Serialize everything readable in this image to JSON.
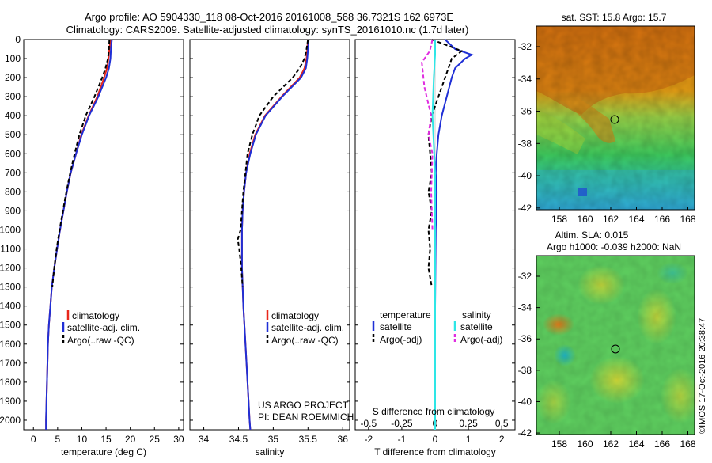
{
  "header": {
    "line1": "Argo profile: AO 5904330_118 08-Oct-2016 20161008_568 36.7321S 162.6973E",
    "line2": "Climatology: CARS2009. Satellite-adjusted climatology: synTS_20161010.nc (1.7d later)"
  },
  "depth_ticks": [
    "0",
    "100",
    "200",
    "300",
    "400",
    "500",
    "600",
    "700",
    "800",
    "900",
    "1000",
    "1100",
    "1200",
    "1300",
    "1400",
    "1500",
    "1600",
    "1700",
    "1800",
    "1900",
    "2000"
  ],
  "panel1": {
    "xlabel": "temperature (deg C)",
    "xticks": [
      "0",
      "5",
      "10",
      "15",
      "20",
      "25",
      "30"
    ],
    "legend": [
      "climatology",
      "satellite-adj. clim.",
      "Argo(..raw -QC)"
    ]
  },
  "panel2": {
    "xlabel": "salinity",
    "xticks": [
      "34",
      "34.5",
      "35",
      "35.5",
      "36"
    ],
    "legend": [
      "climatology",
      "satellite-adj. clim.",
      "Argo(..raw -QC)"
    ],
    "credit1": "US ARGO PROJECT",
    "credit2": "PI: DEAN ROEMMICH"
  },
  "panel3": {
    "xlabel": "T difference from climatology",
    "xticks": [
      "-2",
      "-1",
      "0",
      "1",
      "2"
    ],
    "top_label": "S difference from climatology",
    "top_ticks": [
      "-0.5",
      "-0.25",
      "0",
      "0.25",
      "0.5"
    ],
    "legend_t_head": "temperature",
    "legend_s_head": "salinity",
    "legend_t": [
      "satellite",
      "Argo(-adj)"
    ],
    "legend_s": [
      "satellite",
      "Argo(-adj)"
    ]
  },
  "map1": {
    "title": "sat. SST: 15.8  Argo: 15.7",
    "yticks": [
      "-32",
      "-34",
      "-36",
      "-38",
      "-40",
      "-42"
    ],
    "xticks": [
      "158",
      "160",
      "162",
      "164",
      "166",
      "168"
    ]
  },
  "map2": {
    "title1": "Altim. SLA: 0.015",
    "title2": "Argo h1000: -0.039 h2000: NaN",
    "yticks": [
      "-32",
      "-34",
      "-36",
      "-38",
      "-40",
      "-42"
    ],
    "xticks": [
      "158",
      "160",
      "162",
      "164",
      "166",
      "168"
    ]
  },
  "stamp": "©IMOS 17-Oct-2016 20:38:47",
  "colors": {
    "clim": "#e8261a",
    "sat": "#1f2fd6",
    "argo": "#000000",
    "sal_sat": "#2ee6e6",
    "sal_argo": "#e02de0"
  },
  "chart_data": [
    {
      "type": "line",
      "xlabel": "temperature (deg C)",
      "ylabel": "",
      "xlim": [
        -2,
        31
      ],
      "ylim": [
        2050,
        0
      ],
      "series": [
        {
          "name": "climatology",
          "depth": [
            0,
            50,
            100,
            150,
            200,
            300,
            400,
            500,
            600,
            700,
            800,
            900,
            1000,
            1100,
            1200,
            1300,
            1400,
            1500,
            1600,
            1700,
            1800,
            1900,
            2000,
            2050
          ],
          "values": [
            15.9,
            15.7,
            15.5,
            15.2,
            14.6,
            13.2,
            11.4,
            9.9,
            8.8,
            7.7,
            6.9,
            6.2,
            5.5,
            4.9,
            4.3,
            3.8,
            3.5,
            3.2,
            3.0,
            2.9,
            2.8,
            2.7,
            2.6,
            2.6
          ]
        },
        {
          "name": "satellite-adj. clim.",
          "depth": [
            0,
            50,
            100,
            150,
            200,
            300,
            400,
            500,
            600,
            700,
            800,
            900,
            1000,
            1100,
            1200,
            1300,
            1400,
            1500,
            1600,
            1700,
            1800,
            1900,
            2000,
            2050
          ],
          "values": [
            16.2,
            16.0,
            15.9,
            15.6,
            15.0,
            13.4,
            11.5,
            10.0,
            8.8,
            7.7,
            6.9,
            6.2,
            5.5,
            4.9,
            4.3,
            3.8,
            3.5,
            3.2,
            3.0,
            2.9,
            2.8,
            2.7,
            2.6,
            2.6
          ]
        },
        {
          "name": "Argo(..raw -QC)",
          "depth": [
            0,
            50,
            100,
            150,
            200,
            300,
            400,
            500,
            600,
            700,
            800,
            900,
            1000,
            1100,
            1200,
            1300
          ],
          "values": [
            15.7,
            15.6,
            15.4,
            14.9,
            14.2,
            12.6,
            10.8,
            9.5,
            8.5,
            7.6,
            6.8,
            6.1,
            5.4,
            4.8,
            4.3,
            3.9
          ]
        }
      ]
    },
    {
      "type": "line",
      "xlabel": "salinity",
      "ylabel": "",
      "xlim": [
        33.8,
        36.1
      ],
      "ylim": [
        2050,
        0
      ],
      "series": [
        {
          "name": "climatology",
          "depth": [
            0,
            50,
            100,
            150,
            200,
            300,
            400,
            500,
            600,
            700,
            800,
            900,
            1000,
            1100,
            1200,
            1400,
            1600,
            1800,
            2000,
            2050
          ],
          "values": [
            35.5,
            35.49,
            35.48,
            35.45,
            35.38,
            35.12,
            34.88,
            34.74,
            34.66,
            34.61,
            34.58,
            34.56,
            34.55,
            34.55,
            34.55,
            34.57,
            34.6,
            34.63,
            34.66,
            34.67
          ]
        },
        {
          "name": "satellite-adj. clim.",
          "depth": [
            0,
            50,
            100,
            150,
            200,
            300,
            400,
            500,
            600,
            700,
            800,
            900,
            1000,
            1100,
            1200,
            1400,
            1600,
            1800,
            2000,
            2050
          ],
          "values": [
            35.51,
            35.5,
            35.49,
            35.47,
            35.4,
            35.13,
            34.89,
            34.75,
            34.67,
            34.61,
            34.58,
            34.56,
            34.55,
            34.55,
            34.55,
            34.57,
            34.6,
            34.63,
            34.66,
            34.67
          ]
        },
        {
          "name": "Argo(..raw -QC)",
          "depth": [
            0,
            50,
            100,
            150,
            200,
            300,
            400,
            500,
            600,
            700,
            800,
            900,
            1000,
            1050,
            1100,
            1200,
            1300
          ],
          "values": [
            35.5,
            35.48,
            35.45,
            35.38,
            35.28,
            35.0,
            34.8,
            34.7,
            34.63,
            34.6,
            34.57,
            34.55,
            34.53,
            34.49,
            34.51,
            34.54,
            34.56
          ]
        }
      ]
    },
    {
      "type": "line",
      "xlabel": "T difference from climatology",
      "ylabel": "",
      "xlim": [
        -2.4,
        2.4
      ],
      "ylim": [
        2050,
        0
      ],
      "series": [
        {
          "name": "satellite",
          "depth": [
            0,
            50,
            80,
            100,
            150,
            200,
            300,
            400,
            500,
            600,
            700,
            800,
            1000,
            1200,
            1400,
            1600,
            1800,
            2050
          ],
          "values": [
            0.3,
            0.6,
            1.1,
            0.9,
            0.6,
            0.5,
            0.35,
            0.2,
            0.1,
            0.05,
            0.02,
            0.05,
            0.02,
            0.01,
            0.0,
            0.0,
            0.0,
            0.0
          ]
        },
        {
          "name": "Argo(-adj)",
          "depth": [
            0,
            40,
            60,
            100,
            150,
            200,
            300,
            400,
            500,
            600,
            700,
            800,
            900,
            1000,
            1100,
            1200,
            1300
          ],
          "values": [
            -0.1,
            0.5,
            0.8,
            0.5,
            0.4,
            0.3,
            0.1,
            -0.1,
            -0.2,
            -0.15,
            -0.1,
            -0.2,
            -0.1,
            -0.2,
            -0.15,
            -0.2,
            -0.1
          ]
        }
      ]
    }
  ]
}
